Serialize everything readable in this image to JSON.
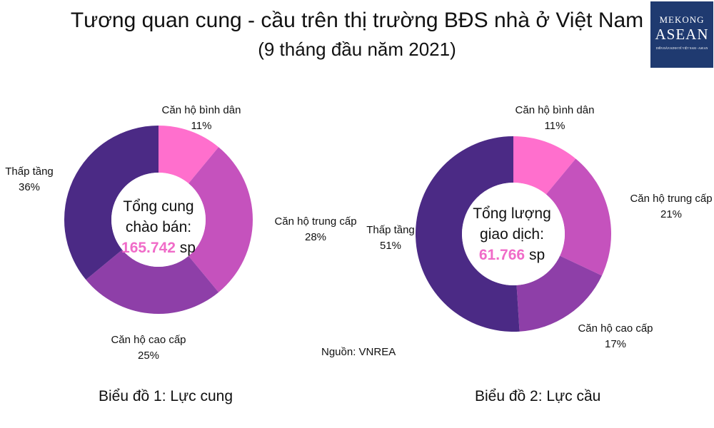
{
  "title": "Tương quan cung - cầu trên thị trường BĐS nhà ở Việt Nam",
  "subtitle": "(9 tháng đầu năm 2021)",
  "logo": {
    "line1": "MEKONG",
    "line2": "ASEAN",
    "line3": "DIỄN ĐÀN KINH TẾ VIỆT NAM - ASEAN"
  },
  "source": "Nguồn: VNREA",
  "colors": {
    "binh_dan": "#ff6fcd",
    "trung_cap": "#c552bd",
    "cao_cap": "#8e3fa8",
    "thap_tang": "#4b2a85",
    "highlight": "#f06bc8"
  },
  "chart_data": [
    {
      "type": "pie",
      "donut": true,
      "caption": "Biểu đồ 1: Lực cung",
      "center": {
        "line1": "Tổng cung",
        "line2": "chào bán:",
        "value": "165.742",
        "unit": "sp"
      },
      "slices": [
        {
          "name": "Căn hộ bình dân",
          "value": 11,
          "label": "11%"
        },
        {
          "name": "Căn hộ trung cấp",
          "value": 28,
          "label": "28%"
        },
        {
          "name": "Căn hộ cao cấp",
          "value": 25,
          "label": "25%"
        },
        {
          "name": "Thấp tầng",
          "value": 36,
          "label": "36%"
        }
      ]
    },
    {
      "type": "pie",
      "donut": true,
      "caption": "Biểu đồ 2: Lực cầu",
      "center": {
        "line1": "Tổng lượng",
        "line2": "giao dịch:",
        "value": "61.766",
        "unit": "sp"
      },
      "slices": [
        {
          "name": "Căn hộ bình dân",
          "value": 11,
          "label": "11%"
        },
        {
          "name": "Căn hộ trung cấp",
          "value": 21,
          "label": "21%"
        },
        {
          "name": "Căn hộ cao cấp",
          "value": 17,
          "label": "17%"
        },
        {
          "name": "Thấp tầng",
          "value": 51,
          "label": "51%"
        }
      ]
    }
  ]
}
